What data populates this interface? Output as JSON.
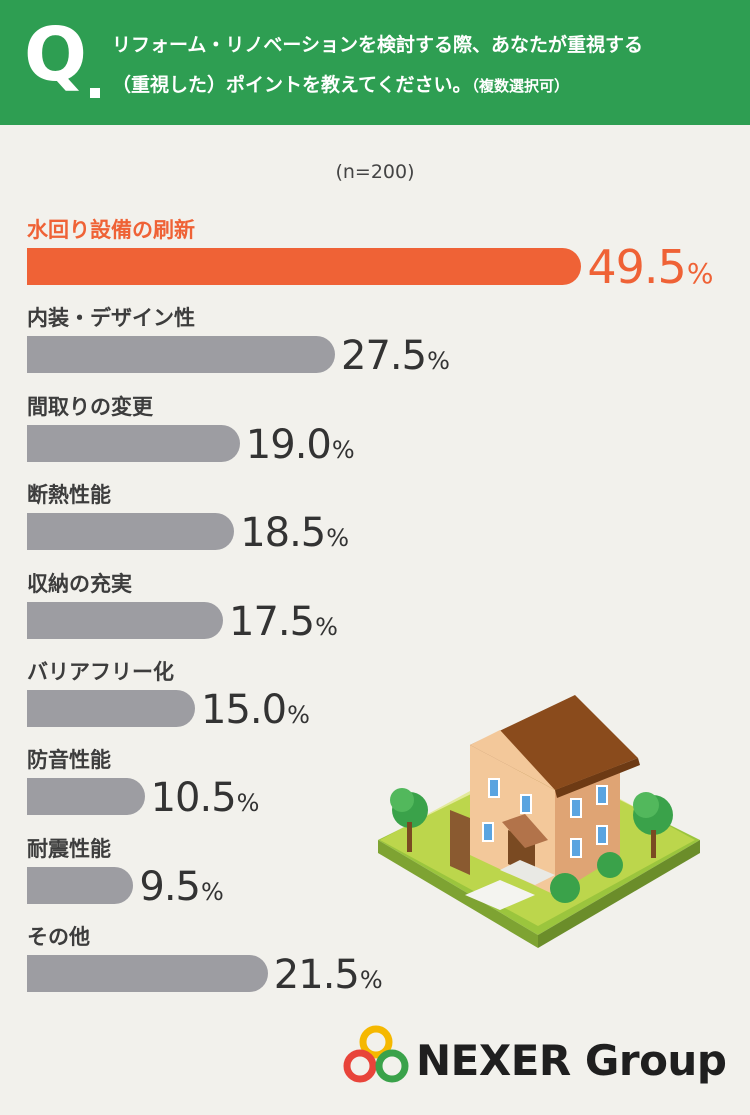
{
  "header": {
    "q_mark": "Q",
    "question_line1": "リフォーム・リノベーションを検討する際、あなたが重視する",
    "question_line2": "（重視した）ポイントを教えてください。",
    "question_note": "（複数選択可）"
  },
  "sample_size": "(n=200)",
  "chart_data": {
    "type": "bar",
    "orientation": "horizontal",
    "categories": [
      "水回り設備の刷新",
      "内装・デザイン性",
      "間取りの変更",
      "断熱性能",
      "収納の充実",
      "バリアフリー化",
      "防音性能",
      "耐震性能",
      "その他"
    ],
    "values": [
      49.5,
      27.5,
      19.0,
      18.5,
      17.5,
      15.0,
      10.5,
      9.5,
      21.5
    ],
    "value_labels": [
      "49.5",
      "27.5",
      "19.0",
      "18.5",
      "17.5",
      "15.0",
      "10.5",
      "9.5",
      "21.5"
    ],
    "unit": "%",
    "highlight_index": 0,
    "colors": {
      "highlight": "#ef6236",
      "default": "#9d9da2",
      "text_default": "#333333"
    }
  },
  "logo": {
    "text": "NEXER Group",
    "ring_colors": [
      "#e8443a",
      "#f5b800",
      "#3aa24a"
    ]
  },
  "colors": {
    "header_bg": "#2e9e52",
    "page_bg": "#f2f1ec"
  }
}
